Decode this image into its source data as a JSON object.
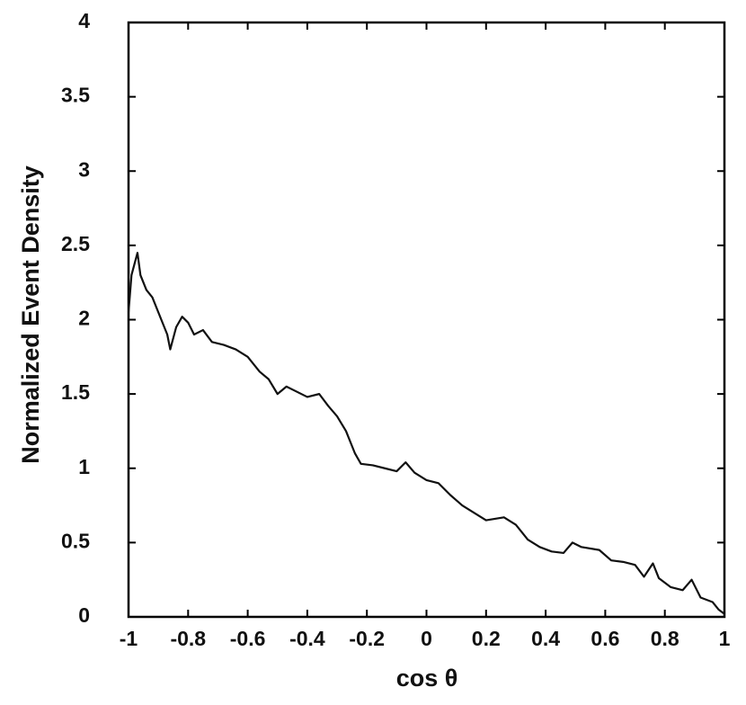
{
  "chart_data": {
    "type": "line",
    "xlabel": "cos θ",
    "ylabel": "Normalized Event Density",
    "x": [
      -1,
      -0.99,
      -0.97,
      -0.96,
      -0.94,
      -0.92,
      -0.9,
      -0.87,
      -0.86,
      -0.84,
      -0.82,
      -0.8,
      -0.78,
      -0.75,
      -0.72,
      -0.68,
      -0.64,
      -0.6,
      -0.56,
      -0.53,
      -0.5,
      -0.47,
      -0.44,
      -0.4,
      -0.36,
      -0.33,
      -0.3,
      -0.27,
      -0.24,
      -0.22,
      -0.18,
      -0.14,
      -0.1,
      -0.07,
      -0.04,
      0,
      0.04,
      0.08,
      0.12,
      0.16,
      0.2,
      0.26,
      0.3,
      0.34,
      0.38,
      0.42,
      0.46,
      0.49,
      0.52,
      0.58,
      0.62,
      0.66,
      0.7,
      0.73,
      0.76,
      0.78,
      0.82,
      0.86,
      0.89,
      0.92,
      0.96,
      0.98,
      1
    ],
    "series": [
      {
        "color": "#111111",
        "values": [
          2.05,
          2.3,
          2.45,
          2.3,
          2.2,
          2.15,
          2.05,
          1.9,
          1.8,
          1.95,
          2.02,
          1.98,
          1.9,
          1.93,
          1.85,
          1.83,
          1.8,
          1.75,
          1.65,
          1.6,
          1.5,
          1.55,
          1.52,
          1.48,
          1.5,
          1.42,
          1.35,
          1.25,
          1.1,
          1.03,
          1.02,
          1.0,
          0.98,
          1.04,
          0.97,
          0.92,
          0.9,
          0.82,
          0.75,
          0.7,
          0.65,
          0.67,
          0.62,
          0.52,
          0.47,
          0.44,
          0.43,
          0.5,
          0.47,
          0.45,
          0.38,
          0.37,
          0.35,
          0.27,
          0.36,
          0.26,
          0.2,
          0.18,
          0.25,
          0.13,
          0.1,
          0.05,
          0.02
        ]
      }
    ],
    "xlim": [
      -1,
      1
    ],
    "ylim": [
      0,
      4
    ],
    "xticks": [
      -1,
      -0.8,
      -0.6,
      -0.4,
      -0.2,
      0,
      0.2,
      0.4,
      0.6,
      0.8,
      1
    ],
    "yticks": [
      0,
      0.5,
      1,
      1.5,
      2,
      2.5,
      3,
      3.5,
      4
    ]
  }
}
